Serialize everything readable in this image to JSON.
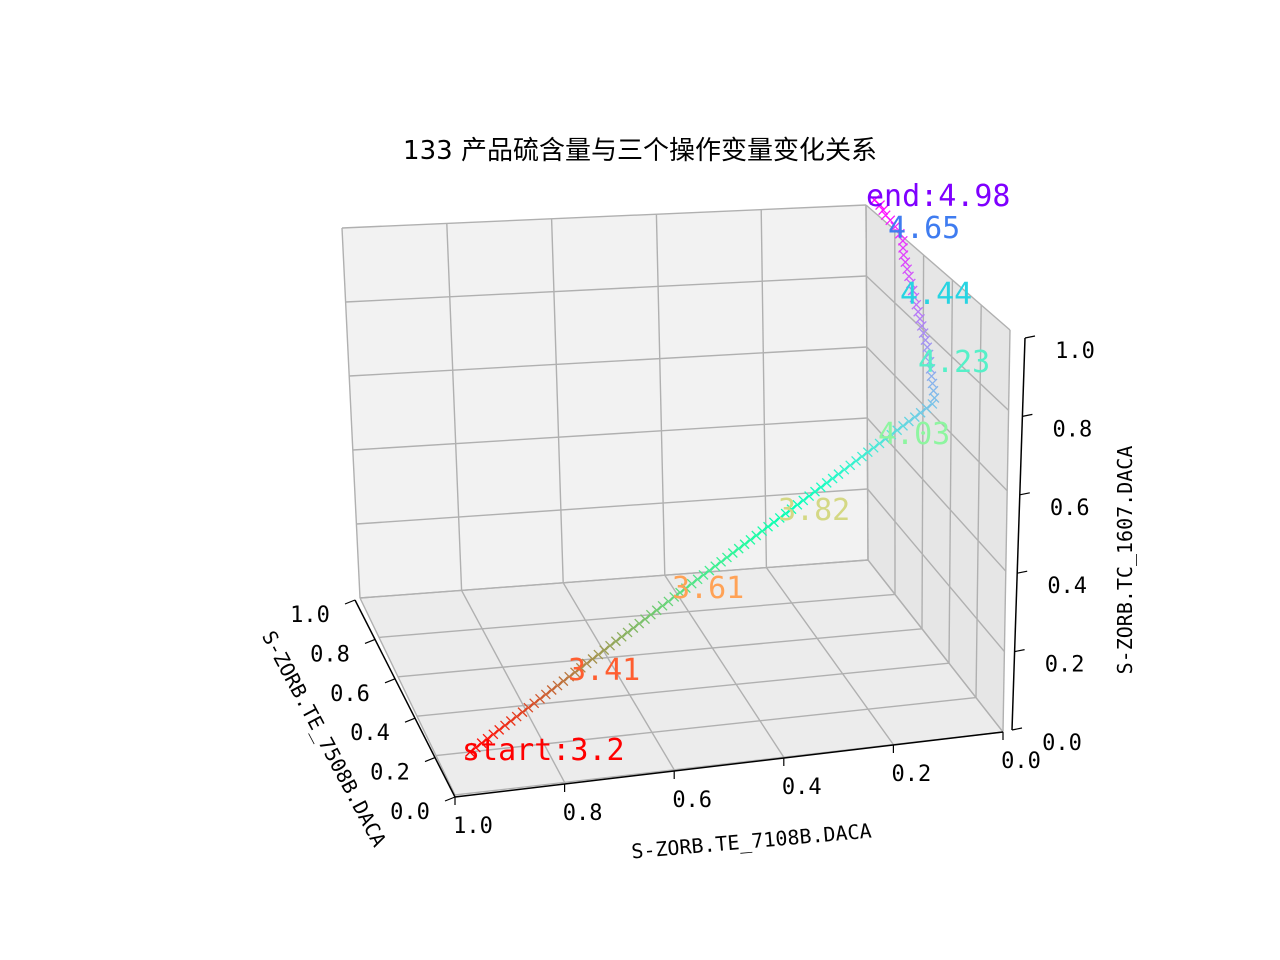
{
  "chart_data": {
    "type": "scatter",
    "title": "133 产品硫含量与三个操作变量变化关系",
    "x_axis": {
      "label": "S-ZORB.TE_7108B.DACA",
      "ticks": [
        "1.0",
        "0.8",
        "0.6",
        "0.4",
        "0.2",
        "0.0"
      ]
    },
    "y_axis": {
      "label": "S-ZORB.TE_7508B.DACA",
      "ticks": [
        "0.0",
        "0.2",
        "0.4",
        "0.6",
        "0.8",
        "1.0"
      ]
    },
    "z_axis": {
      "label": "S-ZORB.TC_1607.DACA",
      "ticks": [
        "0.0",
        "0.2",
        "0.4",
        "0.6",
        "0.8",
        "1.0"
      ]
    },
    "xlim": [
      0,
      1
    ],
    "ylim": [
      0,
      1
    ],
    "zlim": [
      0,
      1
    ],
    "grid": true,
    "colormap": "rainbow",
    "marker": "x",
    "annotations": [
      {
        "text": "start:3.2",
        "color": "#ff0000"
      },
      {
        "text": "3.41",
        "color": "#ff5e30"
      },
      {
        "text": "3.61",
        "color": "#ffa256"
      },
      {
        "text": "3.82",
        "color": "#d4d884"
      },
      {
        "text": "4.03",
        "color": "#8ef5a0"
      },
      {
        "text": "4.23",
        "color": "#56f0c8"
      },
      {
        "text": "4.44",
        "color": "#27d4e2"
      },
      {
        "text": "4.65",
        "color": "#3f7cf0"
      },
      {
        "text": "end:4.98",
        "color": "#7f00ff"
      }
    ]
  }
}
